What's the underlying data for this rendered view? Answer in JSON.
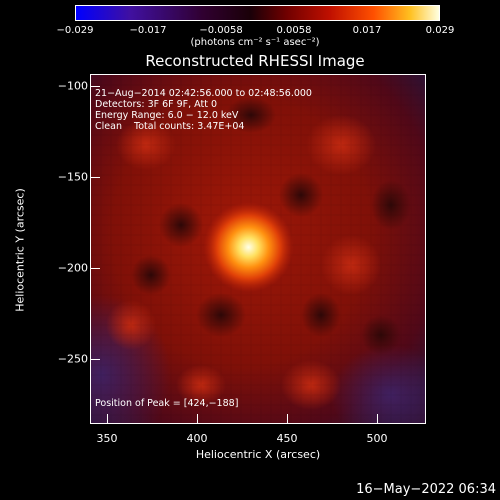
{
  "colorbar": {
    "ticks": [
      "−0.029",
      "−0.017",
      "−0.0058",
      "0.0058",
      "0.017",
      "0.029"
    ],
    "unit": "(photons cm⁻² s⁻¹ asec⁻²)",
    "colors": [
      "#0000ff",
      "#4010a0",
      "#300030",
      "#700000",
      "#c01000",
      "#ff5000",
      "#ffc020",
      "#ffffe0"
    ]
  },
  "title": "Reconstructed RHESSI Image",
  "annotation": {
    "line1": "21−Aug−2014 02:42:56.000 to 02:48:56.000",
    "line2": "Detectors: 3F 6F 9F, Att 0",
    "line3": "Energy Range: 6.0 − 12.0 keV",
    "line4": "Clean    Total counts: 3.47E+04",
    "peak": "Position of Peak = [424,−188]"
  },
  "axes": {
    "xlabel": "Heliocentric X (arcsec)",
    "ylabel": "Heliocentric Y (arcsec)",
    "xticks": [
      "350",
      "400",
      "450",
      "500"
    ],
    "yticks": [
      "−100",
      "−150",
      "−200",
      "−250"
    ],
    "xlim": [
      333,
      526
    ],
    "ylim": [
      -284,
      -94
    ]
  },
  "peak": {
    "x": 424,
    "y": -188
  },
  "timestamp": "16−May−2022 06:34"
}
